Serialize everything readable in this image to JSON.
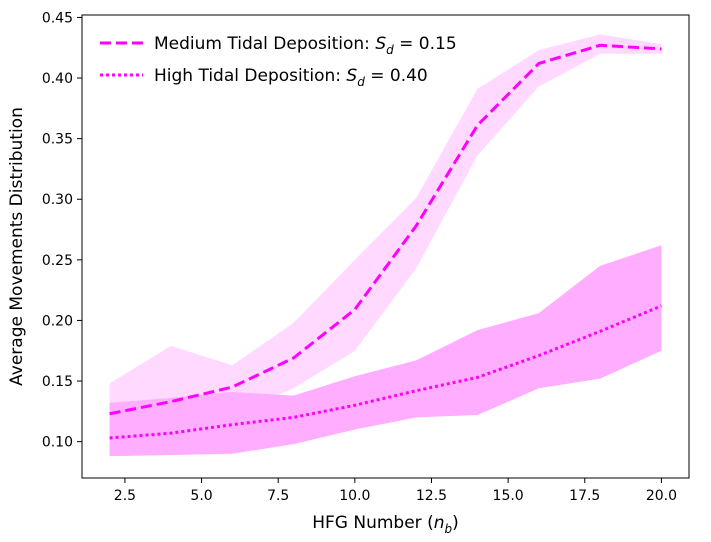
{
  "chart_data": {
    "type": "line",
    "xlabel": "HFG Number (n_b)",
    "ylabel": "Average Movements Distribution",
    "xlim": [
      1.1,
      20.9
    ],
    "ylim": [
      0.07,
      0.452
    ],
    "x_ticks": [
      2.5,
      5.0,
      7.5,
      10.0,
      12.5,
      15.0,
      17.5,
      20.0
    ],
    "x_tick_labels": [
      "2.5",
      "5.0",
      "7.5",
      "10.0",
      "12.5",
      "15.0",
      "17.5",
      "20.0"
    ],
    "y_ticks": [
      0.1,
      0.15,
      0.2,
      0.25,
      0.3,
      0.35,
      0.4,
      0.45
    ],
    "y_tick_labels": [
      "0.10",
      "0.15",
      "0.20",
      "0.25",
      "0.30",
      "0.35",
      "0.40",
      "0.45"
    ],
    "grid": false,
    "legend_position": "top-left",
    "x": [
      2,
      4,
      6,
      8,
      10,
      12,
      14,
      16,
      18,
      20
    ],
    "series": [
      {
        "name": "Medium Tidal Deposition: S_d = 0.15",
        "legend_prefix": "Medium Tidal Deposition: ",
        "legend_var": "S",
        "legend_sub": "d",
        "legend_suffix": " = 0.15",
        "values": [
          0.123,
          0.133,
          0.145,
          0.169,
          0.209,
          0.278,
          0.361,
          0.412,
          0.427,
          0.424
        ],
        "lower": [
          0.1,
          0.1,
          0.122,
          0.144,
          0.175,
          0.243,
          0.336,
          0.393,
          0.42,
          0.42
        ],
        "upper": [
          0.148,
          0.179,
          0.163,
          0.198,
          0.25,
          0.301,
          0.391,
          0.423,
          0.436,
          0.428
        ],
        "color": "#ff00ff",
        "band_color": "#ffd9ff",
        "line_style": "dashed"
      },
      {
        "name": "High Tidal Deposition: S_d = 0.40",
        "legend_prefix": "High Tidal Deposition: ",
        "legend_var": "S",
        "legend_sub": "d",
        "legend_suffix": " = 0.40",
        "values": [
          0.103,
          0.107,
          0.114,
          0.12,
          0.13,
          0.142,
          0.153,
          0.171,
          0.191,
          0.212
        ],
        "lower": [
          0.088,
          0.089,
          0.09,
          0.098,
          0.11,
          0.12,
          0.122,
          0.144,
          0.152,
          0.175
        ],
        "upper": [
          0.132,
          0.136,
          0.141,
          0.138,
          0.154,
          0.167,
          0.192,
          0.206,
          0.245,
          0.262
        ],
        "color": "#ff00ff",
        "band_color": "#ffadff",
        "line_style": "dotted"
      }
    ]
  }
}
